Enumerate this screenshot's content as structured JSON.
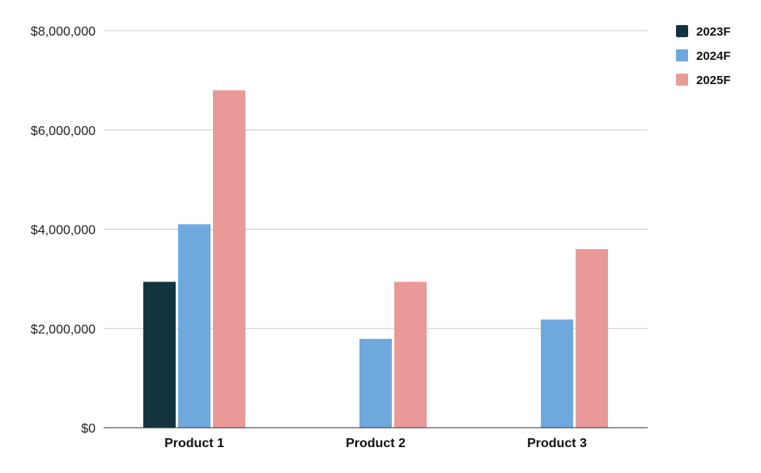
{
  "chart_data": {
    "type": "bar",
    "categories": [
      "Product 1",
      "Product 2",
      "Product 3"
    ],
    "series": [
      {
        "name": "2023F",
        "color": "#12343f",
        "values": [
          2940000,
          0,
          0
        ]
      },
      {
        "name": "2024F",
        "color": "#6fa8dc",
        "values": [
          4100000,
          1790000,
          2180000
        ]
      },
      {
        "name": "2025F",
        "color": "#ea9999",
        "values": [
          6800000,
          2940000,
          3600000
        ]
      }
    ],
    "ylim": [
      0,
      8000000
    ],
    "y_ticks": [
      0,
      2000000,
      4000000,
      6000000,
      8000000
    ],
    "y_tick_labels": [
      "$0",
      "$2,000,000",
      "$4,000,000",
      "$6,000,000",
      "$8,000,000"
    ],
    "grid": true,
    "legend_position": "top-right",
    "title": "",
    "xlabel": "",
    "ylabel": ""
  }
}
